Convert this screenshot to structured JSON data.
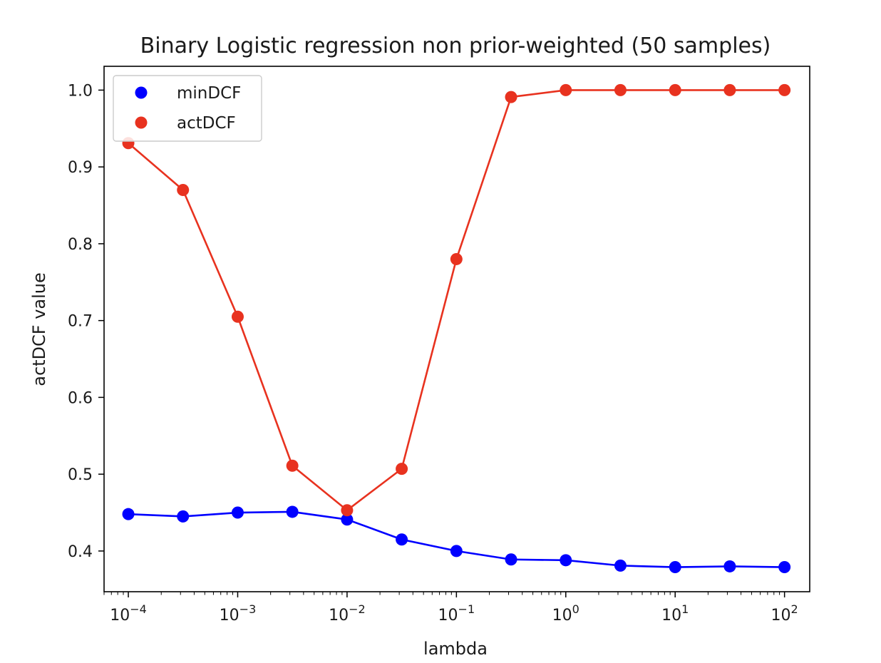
{
  "chart_data": {
    "type": "line",
    "title": "Binary Logistic regression non prior-weighted (50 samples)",
    "xlabel": "lambda",
    "ylabel": "actDCF value",
    "xscale": "log",
    "xlim": [
      6e-05,
      170
    ],
    "ylim": [
      0.347,
      1.031
    ],
    "grid": false,
    "legend_position": "top-left",
    "x": [
      0.0001,
      0.000316,
      0.001,
      0.00316,
      0.01,
      0.0316,
      0.1,
      0.316,
      1,
      3.16,
      10,
      31.6,
      100
    ],
    "x_ticks": [
      {
        "base": "10",
        "exp": "−4"
      },
      {
        "base": "10",
        "exp": "−3"
      },
      {
        "base": "10",
        "exp": "−2"
      },
      {
        "base": "10",
        "exp": "−1"
      },
      {
        "base": "10",
        "exp": "0"
      },
      {
        "base": "10",
        "exp": "1"
      },
      {
        "base": "10",
        "exp": "2"
      }
    ],
    "y_ticks": [
      "0.4",
      "0.5",
      "0.6",
      "0.7",
      "0.8",
      "0.9",
      "1.0"
    ],
    "series": [
      {
        "name": "minDCF",
        "color": "#0000ff",
        "values": [
          0.448,
          0.445,
          0.45,
          0.451,
          0.441,
          0.415,
          0.4,
          0.389,
          0.388,
          0.381,
          0.379,
          0.38,
          0.379
        ]
      },
      {
        "name": "actDCF",
        "color": "#e8321f",
        "values": [
          0.931,
          0.87,
          0.705,
          0.511,
          0.453,
          0.507,
          0.78,
          0.991,
          1.0,
          1.0,
          1.0,
          1.0,
          1.0
        ]
      }
    ]
  }
}
